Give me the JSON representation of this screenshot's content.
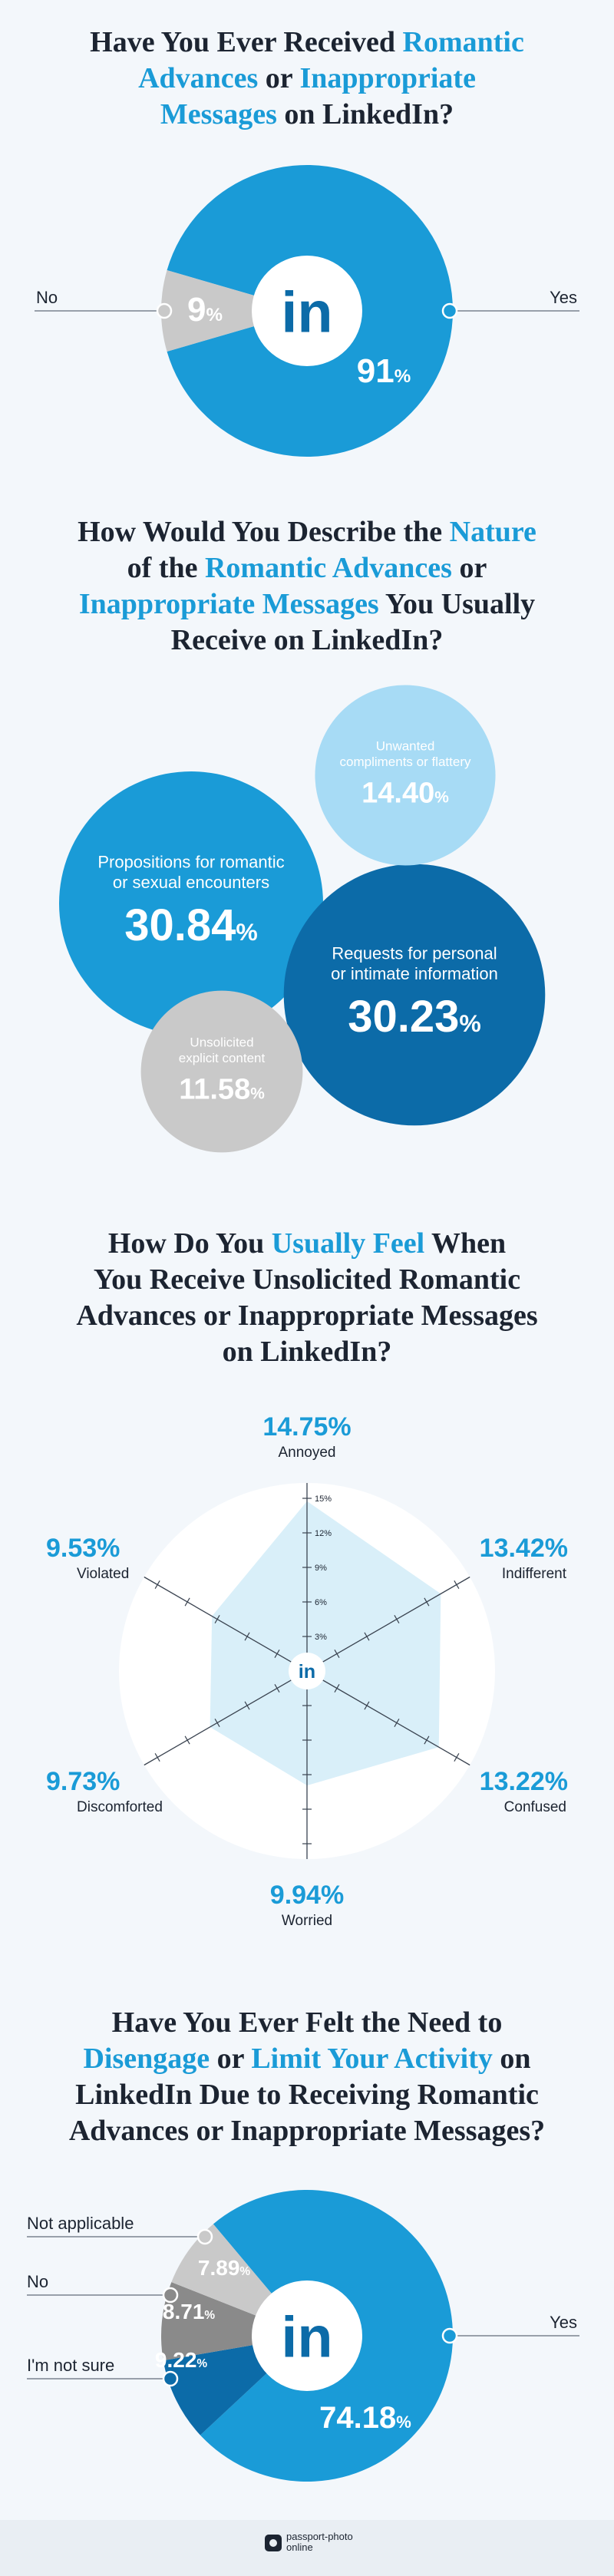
{
  "colors": {
    "blue": "#1a9bd7",
    "dark_blue": "#0c6ba8",
    "light_blue": "#a7dbf5",
    "gray": "#c9c9c9",
    "mid_gray": "#8a8a8a",
    "text": "#1c2431",
    "background": "#f3f7fb"
  },
  "q1": {
    "title_parts": [
      "Have You Ever Received ",
      "Romantic",
      "Advances",
      " or ",
      "Inappropriate",
      "Messages",
      " on LinkedIn?"
    ],
    "logo": "in",
    "labels": {
      "no": "No",
      "yes": "Yes"
    }
  },
  "q2": {
    "title_parts": [
      "How Would You Describe the ",
      "Nature",
      "of the ",
      "Romantic Advances",
      " or",
      "Inappropriate Messages",
      " You Usually",
      "Receive on LinkedIn?"
    ]
  },
  "q3": {
    "title_lines": [
      "How Do You ",
      "Usually Feel",
      " When",
      "You Receive Unsolicited Romantic",
      "Advances or Inappropriate Messages",
      "on LinkedIn?"
    ],
    "logo": "in"
  },
  "q4": {
    "title_parts": [
      "Have You Ever Felt the Need to",
      "Disengage",
      " or ",
      "Limit Your Activity",
      " on",
      "LinkedIn Due to Receiving Romantic",
      "Advances or Inappropriate Messages?"
    ],
    "logo": "in"
  },
  "footer": {
    "logo_icon": "camera-icon",
    "line1": "passport-photo",
    "line2": "online"
  },
  "chart_data": [
    {
      "type": "pie",
      "title": "Have You Ever Received Romantic Advances or Inappropriate Messages on LinkedIn?",
      "categories": [
        "Yes",
        "No"
      ],
      "values": [
        91,
        9
      ],
      "value_labels": [
        "91",
        "9"
      ],
      "unit": "%"
    },
    {
      "type": "bubble",
      "title": "How Would You Describe the Nature of the Romantic Advances or Inappropriate Messages You Usually Receive on LinkedIn?",
      "categories": [
        "Propositions for romantic or sexual encounters",
        "Requests for personal or intimate information",
        "Unwanted compliments or flattery",
        "Unsolicited explicit content"
      ],
      "values": [
        30.84,
        30.23,
        14.4,
        11.58
      ],
      "value_labels": [
        "30.84",
        "30.23",
        "14.40",
        "11.58"
      ],
      "unit": "%"
    },
    {
      "type": "radar",
      "title": "How Do You Usually Feel When You Receive Unsolicited Romantic Advances or Inappropriate Messages on LinkedIn?",
      "categories": [
        "Annoyed",
        "Indifferent",
        "Confused",
        "Worried",
        "Discomforted",
        "Violated"
      ],
      "values": [
        14.75,
        13.42,
        13.22,
        9.94,
        9.73,
        9.53
      ],
      "value_labels": [
        "14.75%",
        "13.42%",
        "13.22%",
        "9.94%",
        "9.73%",
        "9.53%"
      ],
      "r_ticks": [
        "3%",
        "6%",
        "9%",
        "12%",
        "15%"
      ],
      "rlim": [
        0,
        15
      ]
    },
    {
      "type": "pie",
      "title": "Have You Ever Felt the Need to Disengage or Limit Your Activity on LinkedIn Due to Receiving Romantic Advances or Inappropriate Messages?",
      "categories": [
        "Yes",
        "I'm not sure",
        "No",
        "Not applicable"
      ],
      "values": [
        74.18,
        9.22,
        8.71,
        7.89
      ],
      "value_labels": [
        "74.18",
        "9.22",
        "8.71",
        "7.89"
      ],
      "unit": "%"
    }
  ]
}
